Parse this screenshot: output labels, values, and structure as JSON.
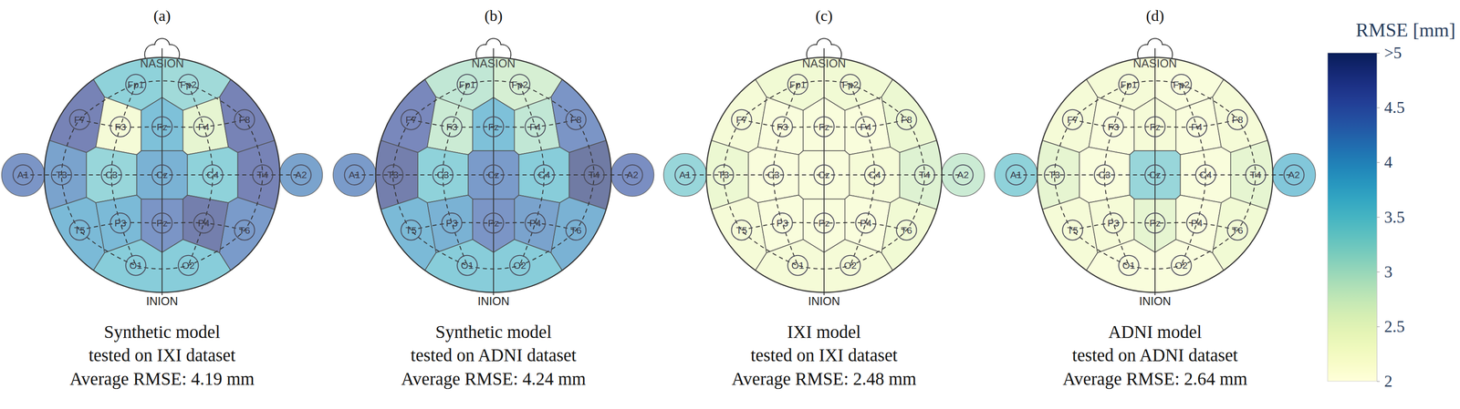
{
  "chart_data": [
    {
      "type": "topomap",
      "label": "(a)",
      "title": "Synthetic model",
      "subtitle": "tested on IXI dataset",
      "annotation": "Average RMSE: 4.19 mm",
      "landmarks": [
        "NASION",
        "INION"
      ],
      "categories": [
        "Fp1",
        "Fp2",
        "F7",
        "F3",
        "Fz",
        "F4",
        "F8",
        "A1",
        "T3",
        "C3",
        "Cz",
        "C4",
        "T4",
        "A2",
        "T5",
        "P3",
        "Pz",
        "P4",
        "T6",
        "O1",
        "O2"
      ],
      "values": [
        3.5,
        3.3,
        4.7,
        2.3,
        3.8,
        2.6,
        4.7,
        4.4,
        4.2,
        3.4,
        4.0,
        3.5,
        4.7,
        4.2,
        3.9,
        3.9,
        4.4,
        4.8,
        4.3,
        3.6,
        3.6
      ]
    },
    {
      "type": "topomap",
      "label": "(b)",
      "title": "Synthetic model",
      "subtitle": "tested on ADNI dataset",
      "annotation": "Average RMSE: 4.24 mm",
      "landmarks": [
        "NASION",
        "INION"
      ],
      "categories": [
        "Fp1",
        "Fp2",
        "F7",
        "F3",
        "Fz",
        "F4",
        "F8",
        "A1",
        "T3",
        "C3",
        "Cz",
        "C4",
        "T4",
        "A2",
        "T5",
        "P3",
        "Pz",
        "P4",
        "T6",
        "O1",
        "O2"
      ],
      "values": [
        3.0,
        2.8,
        4.6,
        2.9,
        3.8,
        3.0,
        4.4,
        4.3,
        4.8,
        3.5,
        4.3,
        3.6,
        4.9,
        4.5,
        3.9,
        4.0,
        4.4,
        4.2,
        4.0,
        3.6,
        3.6
      ]
    },
    {
      "type": "topomap",
      "label": "(c)",
      "title": "IXI model",
      "subtitle": "tested on IXI dataset",
      "annotation": "Average RMSE: 2.48 mm",
      "landmarks": [
        "NASION",
        "INION"
      ],
      "categories": [
        "Fp1",
        "Fp2",
        "F7",
        "F3",
        "Fz",
        "F4",
        "F8",
        "A1",
        "T3",
        "C3",
        "Cz",
        "C4",
        "T4",
        "A2",
        "T5",
        "P3",
        "Pz",
        "P4",
        "T6",
        "O1",
        "O2"
      ],
      "values": [
        2.4,
        2.4,
        2.3,
        2.2,
        2.2,
        2.2,
        2.5,
        3.4,
        2.5,
        2.2,
        2.2,
        2.3,
        2.7,
        2.9,
        2.3,
        2.2,
        2.2,
        2.2,
        2.4,
        2.3,
        2.3
      ]
    },
    {
      "type": "topomap",
      "label": "(d)",
      "title": "ADNI model",
      "subtitle": "tested on ADNI dataset",
      "annotation": "Average RMSE: 2.64 mm",
      "landmarks": [
        "NASION",
        "INION"
      ],
      "categories": [
        "Fp1",
        "Fp2",
        "F7",
        "F3",
        "Fz",
        "F4",
        "F8",
        "A1",
        "T3",
        "C3",
        "Cz",
        "C4",
        "T4",
        "A2",
        "T5",
        "P3",
        "Pz",
        "P4",
        "T6",
        "O1",
        "O2"
      ],
      "values": [
        2.3,
        2.2,
        2.3,
        2.2,
        2.3,
        2.2,
        2.3,
        3.5,
        2.6,
        2.2,
        3.4,
        2.2,
        2.6,
        3.7,
        2.3,
        2.3,
        2.6,
        2.2,
        2.4,
        2.2,
        2.2
      ]
    }
  ],
  "colorbar": {
    "title": "RMSE [mm]",
    "range": [
      2,
      5
    ],
    "ticks": [
      2,
      2.5,
      3,
      3.5,
      4,
      4.5,
      {
        "value": 5,
        "label": ">5"
      }
    ]
  }
}
